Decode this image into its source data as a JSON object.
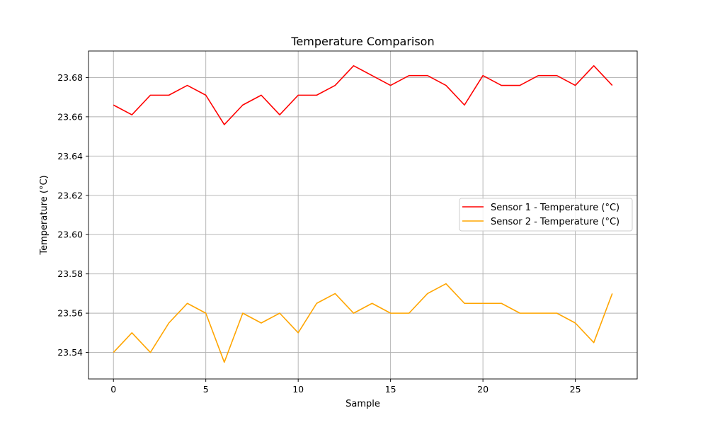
{
  "chart_data": {
    "type": "line",
    "title": "Temperature Comparison",
    "xlabel": "Sample",
    "ylabel": "Temperature (°C)",
    "xlim": [
      -1.35,
      28.35
    ],
    "ylim": [
      23.5265,
      23.6935
    ],
    "xticks": [
      0,
      5,
      10,
      15,
      20,
      25
    ],
    "xtick_labels": [
      "0",
      "5",
      "10",
      "15",
      "20",
      "25"
    ],
    "yticks": [
      23.54,
      23.56,
      23.58,
      23.6,
      23.62,
      23.64,
      23.66,
      23.68
    ],
    "ytick_labels": [
      "23.54",
      "23.56",
      "23.58",
      "23.60",
      "23.62",
      "23.64",
      "23.66",
      "23.68"
    ],
    "grid": true,
    "legend_position": "center-right",
    "x": [
      0,
      1,
      2,
      3,
      4,
      5,
      6,
      7,
      8,
      9,
      10,
      11,
      12,
      13,
      14,
      15,
      16,
      17,
      18,
      19,
      20,
      21,
      22,
      23,
      24,
      25,
      26,
      27
    ],
    "series": [
      {
        "name": "Sensor 1 - Temperature (°C)",
        "color": "#ff0000",
        "values": [
          23.666,
          23.661,
          23.671,
          23.671,
          23.676,
          23.671,
          23.656,
          23.666,
          23.671,
          23.661,
          23.671,
          23.671,
          23.676,
          23.686,
          23.681,
          23.676,
          23.681,
          23.681,
          23.676,
          23.666,
          23.681,
          23.676,
          23.676,
          23.681,
          23.681,
          23.676,
          23.686,
          23.676
        ]
      },
      {
        "name": "Sensor 2 - Temperature (°C)",
        "color": "#ffa500",
        "values": [
          23.54,
          23.55,
          23.54,
          23.555,
          23.565,
          23.56,
          23.535,
          23.56,
          23.555,
          23.56,
          23.55,
          23.565,
          23.57,
          23.56,
          23.565,
          23.56,
          23.56,
          23.57,
          23.575,
          23.565,
          23.565,
          23.565,
          23.56,
          23.56,
          23.56,
          23.555,
          23.545,
          23.57
        ]
      }
    ]
  }
}
